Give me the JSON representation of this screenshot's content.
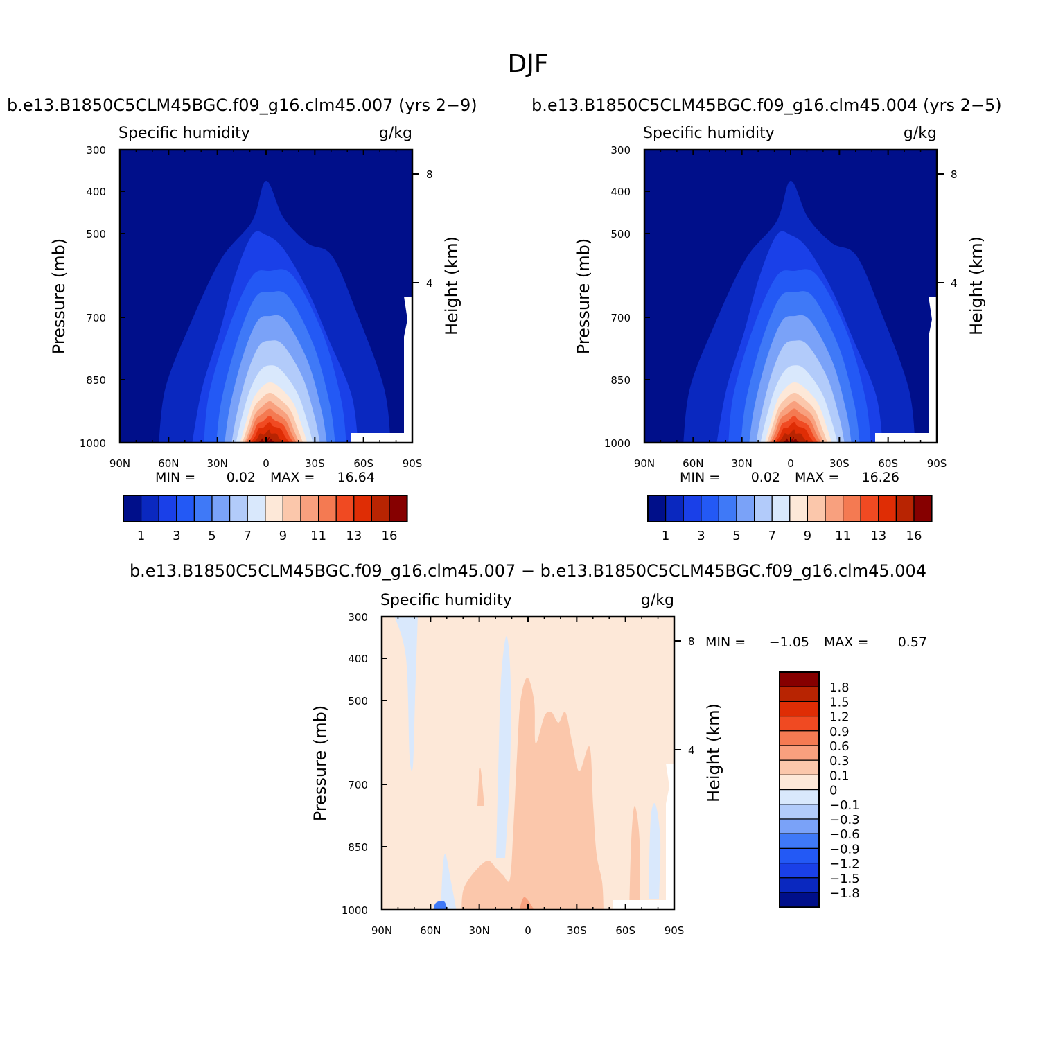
{
  "figure": {
    "title": "DJF"
  },
  "colors": {
    "abs_levels": [
      "#000f8a",
      "#0a28bf",
      "#1a40e8",
      "#2359f5",
      "#3f79f7",
      "#7aa2f8",
      "#b2cbfa",
      "#d9e8fc",
      "#fde8d8",
      "#fbc7ab",
      "#f8a07e",
      "#f47a52",
      "#f04a22",
      "#df2d05",
      "#b82402",
      "#860000"
    ],
    "diff_levels": [
      "#000f8a",
      "#0a28bf",
      "#1a40e8",
      "#2359f5",
      "#3f79f7",
      "#7aa2f8",
      "#b2cbfa",
      "#d9e8fc",
      "#fde8d8",
      "#fbc7ab",
      "#f8a07e",
      "#f47a52",
      "#f04a22",
      "#df2d05",
      "#b82402",
      "#860000"
    ]
  },
  "chart_data": [
    {
      "type": "heatmap",
      "panel": "case",
      "title": "b.e13.B1850C5CLM45BGC.f09_g16.clm45.007 (yrs 2−9)",
      "left_string": "Specific humidity",
      "right_string": "g/kg",
      "xlabel": "",
      "ylabel": "Pressure (mb)",
      "y2label": "Height (km)",
      "x_ticks": [
        "90N",
        "60N",
        "30N",
        "0",
        "30S",
        "60S",
        "90S"
      ],
      "y_ticks": [
        "300",
        "400",
        "500",
        "700",
        "850",
        "1000"
      ],
      "y2_ticks": [
        "8",
        "4"
      ],
      "stats": {
        "min_label": "MIN =",
        "min": "0.02",
        "max_label": "MAX =",
        "max": "16.64"
      },
      "colorbar_labels": [
        "1",
        "3",
        "5",
        "7",
        "9",
        "11",
        "13",
        "16"
      ],
      "peak_value": 16.64
    },
    {
      "type": "heatmap",
      "panel": "control",
      "title": "b.e13.B1850C5CLM45BGC.f09_g16.clm45.004 (yrs 2−5)",
      "left_string": "Specific humidity",
      "right_string": "g/kg",
      "xlabel": "",
      "ylabel": "Pressure (mb)",
      "y2label": "Height (km)",
      "x_ticks": [
        "90N",
        "60N",
        "30N",
        "0",
        "30S",
        "60S",
        "90S"
      ],
      "y_ticks": [
        "300",
        "400",
        "500",
        "700",
        "850",
        "1000"
      ],
      "y2_ticks": [
        "8",
        "4"
      ],
      "stats": {
        "min_label": "MIN =",
        "min": "0.02",
        "max_label": "MAX =",
        "max": "16.26"
      },
      "colorbar_labels": [
        "1",
        "3",
        "5",
        "7",
        "9",
        "11",
        "13",
        "16"
      ],
      "peak_value": 16.26
    },
    {
      "type": "heatmap",
      "panel": "difference",
      "title": "b.e13.B1850C5CLM45BGC.f09_g16.clm45.007 − b.e13.B1850C5CLM45BGC.f09_g16.clm45.004",
      "left_string": "Specific humidity",
      "right_string": "g/kg",
      "xlabel": "",
      "ylabel": "Pressure (mb)",
      "y2label": "Height (km)",
      "x_ticks": [
        "90N",
        "60N",
        "30N",
        "0",
        "30S",
        "60S",
        "90S"
      ],
      "y_ticks": [
        "300",
        "400",
        "500",
        "700",
        "850",
        "1000"
      ],
      "y2_ticks": [
        "8",
        "4"
      ],
      "stats": {
        "min_label": "MIN =",
        "min": "−1.05",
        "max_label": "MAX =",
        "max": "0.57"
      },
      "colorbar_labels": [
        "1.8",
        "1.5",
        "1.2",
        "0.9",
        "0.6",
        "0.3",
        "0.1",
        "0",
        "−0.1",
        "−0.3",
        "−0.6",
        "−0.9",
        "−1.2",
        "−1.5",
        "−1.8"
      ]
    }
  ]
}
